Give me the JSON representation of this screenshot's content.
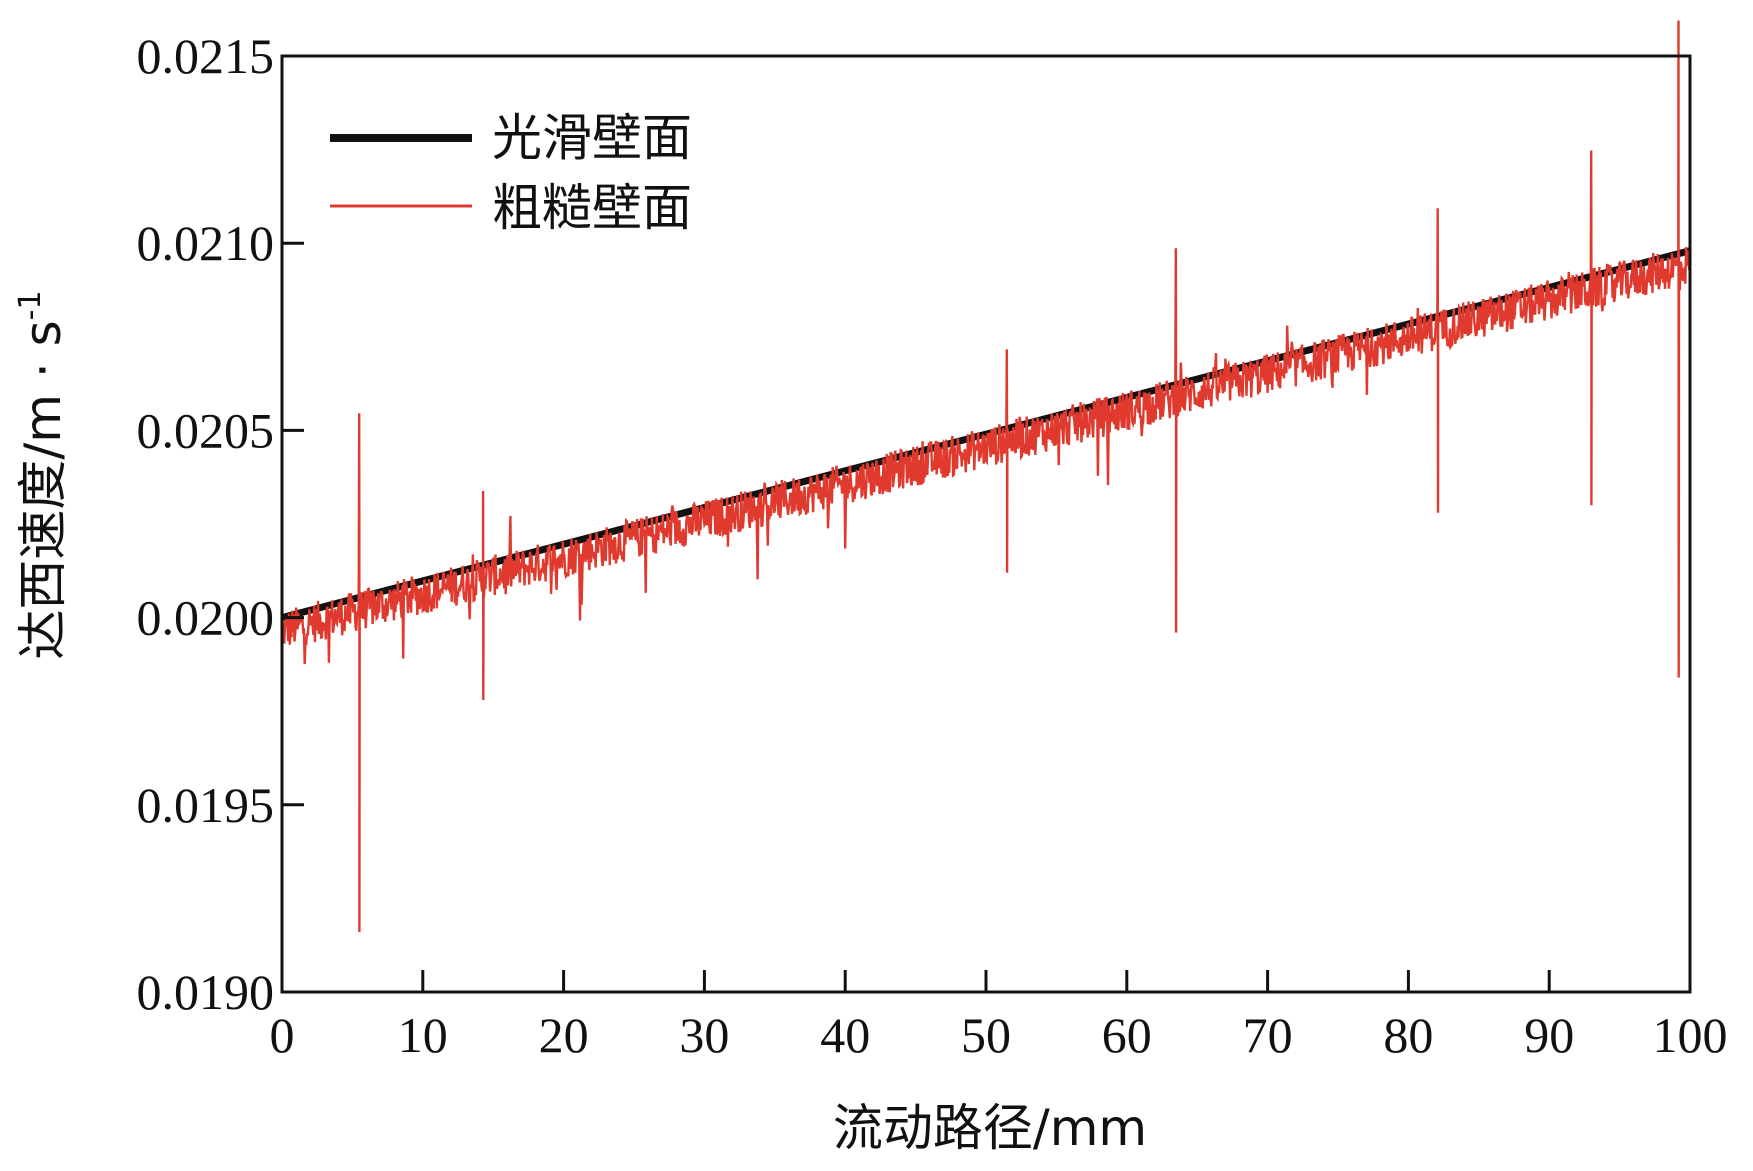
{
  "chart_data": {
    "type": "line",
    "title": "",
    "xlabel": "流动路径/mm",
    "ylabel": "达西速度/m · s",
    "ylabel_exponent": "-1",
    "xlim": [
      0,
      100
    ],
    "ylim": [
      0.019,
      0.0215
    ],
    "x_ticks": [
      0,
      10,
      20,
      30,
      40,
      50,
      60,
      70,
      80,
      90,
      100
    ],
    "x_tick_labels": [
      "0",
      "10",
      "20",
      "30",
      "40",
      "50",
      "60",
      "70",
      "80",
      "90",
      "100"
    ],
    "y_ticks": [
      0.019,
      0.0195,
      0.02,
      0.0205,
      0.021,
      0.0215
    ],
    "y_tick_labels": [
      "0.0190",
      "0.0195",
      "0.0200",
      "0.0205",
      "0.0210",
      "0.0215"
    ],
    "grid": false,
    "legend_position": "top-left",
    "series": [
      {
        "name": "光滑壁面",
        "color": "#111111",
        "x": [
          0,
          100
        ],
        "y": [
          0.02,
          0.02098
        ]
      },
      {
        "name": "粗糙壁面",
        "color": "#e03a2f",
        "x": [
          0,
          2,
          4,
          5.5,
          6,
          8,
          10,
          12,
          14.3,
          16,
          18,
          20,
          22,
          24,
          26,
          28,
          30,
          32,
          34,
          36,
          38,
          40,
          42,
          44,
          46,
          48,
          50,
          51.5,
          52,
          54,
          56,
          58,
          60,
          62,
          63.5,
          64,
          66,
          68,
          70,
          72,
          74,
          76,
          78,
          80,
          82.1,
          84,
          85,
          86,
          88,
          90,
          92,
          93,
          94,
          96,
          98,
          99.2,
          100
        ],
        "y": [
          0.02,
          0.02002,
          0.02004,
          0.01916,
          0.02002,
          0.02001,
          0.02004,
          0.02008,
          0.01978,
          0.02012,
          0.02016,
          0.02018,
          0.0202,
          0.02022,
          0.02024,
          0.02026,
          0.02028,
          0.0203,
          0.02032,
          0.02034,
          0.02036,
          0.02038,
          0.0204,
          0.02042,
          0.02044,
          0.02046,
          0.02048,
          0.02012,
          0.0205,
          0.02052,
          0.02054,
          0.02056,
          0.02058,
          0.0206,
          0.01996,
          0.02062,
          0.02064,
          0.02066,
          0.02068,
          0.0207,
          0.02072,
          0.02074,
          0.02076,
          0.02078,
          0.02028,
          0.0208,
          0.02082,
          0.02084,
          0.02086,
          0.02088,
          0.0209,
          0.0203,
          0.02092,
          0.02094,
          0.02094,
          0.01984,
          0.02094
        ]
      }
    ]
  }
}
